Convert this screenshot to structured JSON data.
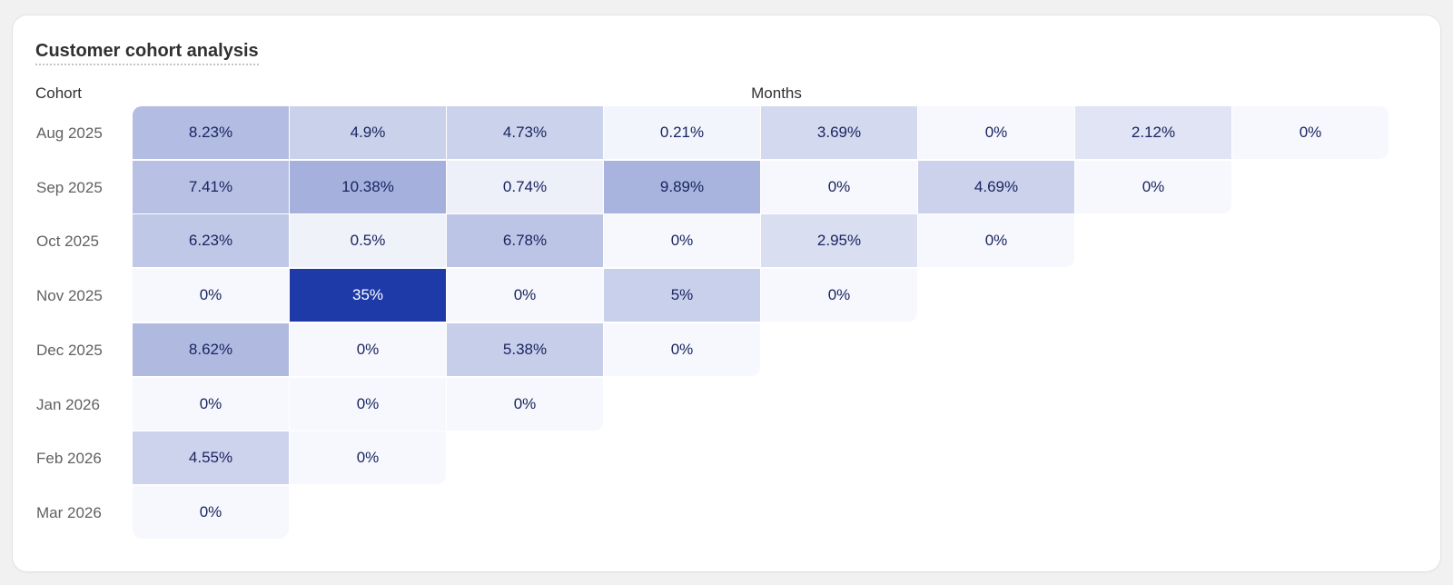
{
  "card": {
    "title": "Customer cohort analysis",
    "cohort_header": "Cohort",
    "months_header": "Months"
  },
  "rows": [
    {
      "label": "Aug 2025",
      "cells": [
        "8.23%",
        "4.9%",
        "4.73%",
        "0.21%",
        "3.69%",
        "0%",
        "2.12%",
        "0%"
      ]
    },
    {
      "label": "Sep 2025",
      "cells": [
        "7.41%",
        "10.38%",
        "0.74%",
        "9.89%",
        "0%",
        "4.69%",
        "0%"
      ]
    },
    {
      "label": "Oct 2025",
      "cells": [
        "6.23%",
        "0.5%",
        "6.78%",
        "0%",
        "2.95%",
        "0%"
      ]
    },
    {
      "label": "Nov 2025",
      "cells": [
        "0%",
        "35%",
        "0%",
        "5%",
        "0%"
      ]
    },
    {
      "label": "Dec 2025",
      "cells": [
        "8.62%",
        "0%",
        "5.38%",
        "0%"
      ]
    },
    {
      "label": "Jan 2026",
      "cells": [
        "0%",
        "0%",
        "0%"
      ]
    },
    {
      "label": "Feb 2026",
      "cells": [
        "4.55%",
        "0%"
      ]
    },
    {
      "label": "Mar 2026",
      "cells": [
        "0%"
      ]
    }
  ],
  "colors": {
    "max_cell": "#1e3aa8",
    "min_cell": "#f7f8fd",
    "text": "#1a2560",
    "label": "#616161"
  }
}
